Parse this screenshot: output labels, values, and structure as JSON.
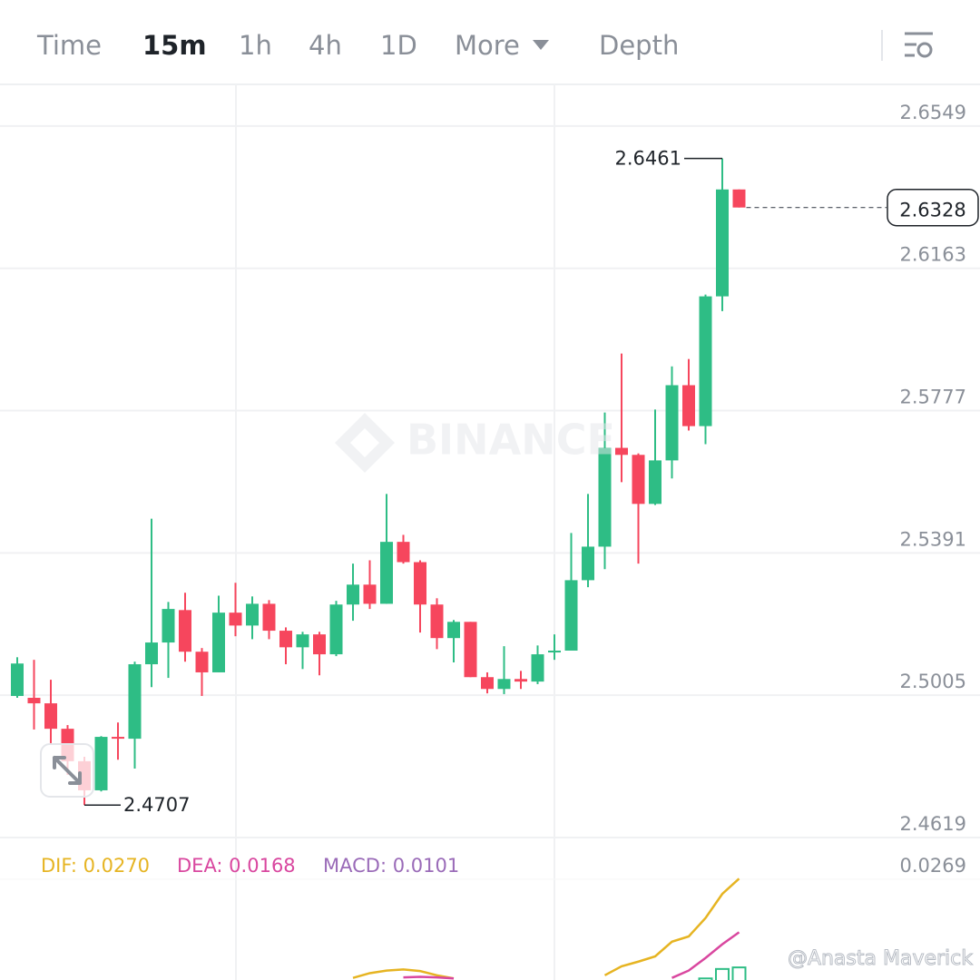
{
  "tabs": [
    "Time",
    "15m",
    "1h",
    "4h",
    "1D",
    "More",
    "Depth"
  ],
  "active_tab": 1,
  "watermark": "BINANCE",
  "credit": "@Anasta Maverick",
  "chart_data": {
    "type": "candlestick",
    "up_color": "#2ebd85",
    "down_color": "#f6465d",
    "open": [
      2.5003,
      2.4998,
      2.4983,
      2.4914,
      2.4826,
      2.4747,
      2.4892,
      2.4887,
      2.5089,
      2.5148,
      2.5236,
      2.5123,
      2.5067,
      2.5229,
      2.5194,
      2.5253,
      2.518,
      2.5135,
      2.517,
      2.5116,
      2.5251,
      2.5305,
      2.5253,
      2.5421,
      2.5366,
      2.5251,
      2.516,
      2.5204,
      2.5054,
      2.5022,
      2.5049,
      2.5042,
      2.5121,
      2.5126,
      2.5317,
      2.5408,
      2.5676,
      2.5657,
      2.5524,
      2.5642,
      2.5846,
      2.5735,
      2.6087,
      2.6377
    ],
    "high": [
      2.5108,
      2.5101,
      2.5047,
      2.4924,
      2.4838,
      2.4894,
      2.4931,
      2.5096,
      2.5484,
      2.5258,
      2.5283,
      2.5133,
      2.5275,
      2.531,
      2.5273,
      2.5263,
      2.5189,
      2.5177,
      2.5177,
      2.5261,
      2.5362,
      2.5371,
      2.5551,
      2.544,
      2.5371,
      2.5268,
      2.5209,
      2.5204,
      2.5067,
      2.5138,
      2.5071,
      2.514,
      2.517,
      2.5445,
      2.5551,
      2.5772,
      2.5932,
      2.5661,
      2.578,
      2.5897,
      2.5917,
      2.6092,
      2.6461,
      2.6377
    ],
    "low": [
      2.4998,
      2.4912,
      2.4875,
      2.4789,
      2.4707,
      2.4744,
      2.483,
      2.4806,
      2.5027,
      2.5052,
      2.5096,
      2.5003,
      2.5067,
      2.5165,
      2.5157,
      2.5157,
      2.5089,
      2.5076,
      2.5059,
      2.5111,
      2.5207,
      2.5239,
      2.5253,
      2.5362,
      2.5175,
      2.513,
      2.5094,
      2.5054,
      2.501,
      2.5008,
      2.5022,
      2.5035,
      2.5101,
      2.5126,
      2.5298,
      2.5347,
      2.5583,
      2.5362,
      2.5521,
      2.5593,
      2.5723,
      2.5686,
      2.6047,
      2.6328
    ],
    "close": [
      2.5091,
      2.4983,
      2.4914,
      2.4826,
      2.4747,
      2.4892,
      2.4887,
      2.5089,
      2.5148,
      2.5239,
      2.5123,
      2.5067,
      2.5229,
      2.5194,
      2.5253,
      2.518,
      2.5135,
      2.517,
      2.5116,
      2.5251,
      2.5305,
      2.5253,
      2.5421,
      2.5366,
      2.5251,
      2.516,
      2.5204,
      2.5054,
      2.5022,
      2.5049,
      2.5042,
      2.5116,
      2.5126,
      2.5317,
      2.5408,
      2.5676,
      2.5657,
      2.5524,
      2.5642,
      2.5846,
      2.5735,
      2.6087,
      2.6377,
      2.6328
    ],
    "ylim": [
      2.4614,
      2.6662
    ],
    "yticks": [
      2.6549,
      2.6163,
      2.5777,
      2.5391,
      2.5005,
      2.4619
    ],
    "grid": true,
    "high_label": 2.6461,
    "low_label": 2.4707,
    "last_price": 2.6328,
    "macd": {
      "ylim": [
        0.0077,
        0.0319
      ],
      "yticks": [
        0.0269
      ],
      "series": [
        {
          "legend": "DIF: 0.0270",
          "color": "#e6b422",
          "kind": "line",
          "values": [
            null,
            null,
            null,
            null,
            null,
            null,
            null,
            null,
            null,
            null,
            null,
            null,
            null,
            null,
            null,
            null,
            null,
            null,
            null,
            null,
            0.0081,
            0.009,
            0.0095,
            0.0097,
            0.0094,
            0.0086,
            0.008,
            null,
            null,
            null,
            null,
            null,
            null,
            null,
            null,
            0.0086,
            0.0103,
            0.0112,
            0.0122,
            0.015,
            0.016,
            0.0195,
            0.0241,
            0.027
          ]
        },
        {
          "legend": "DEA: 0.0168",
          "color": "#d9479f",
          "kind": "line",
          "values": [
            null,
            null,
            null,
            null,
            null,
            null,
            null,
            null,
            null,
            null,
            null,
            null,
            null,
            null,
            null,
            null,
            null,
            null,
            null,
            null,
            null,
            null,
            null,
            0.0082,
            0.0083,
            0.0082,
            0.008,
            null,
            null,
            null,
            null,
            null,
            null,
            null,
            null,
            null,
            null,
            null,
            null,
            0.0081,
            0.0095,
            0.0119,
            0.0145,
            0.0168
          ]
        },
        {
          "legend": "MACD: 0.0101",
          "color": "#9a6bb8",
          "bar_color": "#2ebd85",
          "kind": "bar",
          "values": [
            null,
            null,
            null,
            null,
            null,
            null,
            null,
            null,
            null,
            null,
            null,
            null,
            null,
            null,
            null,
            null,
            null,
            null,
            null,
            null,
            null,
            null,
            null,
            null,
            null,
            null,
            null,
            null,
            null,
            null,
            null,
            null,
            null,
            null,
            null,
            null,
            null,
            null,
            null,
            null,
            null,
            0.008,
            0.0098,
            0.0101
          ]
        }
      ]
    }
  }
}
